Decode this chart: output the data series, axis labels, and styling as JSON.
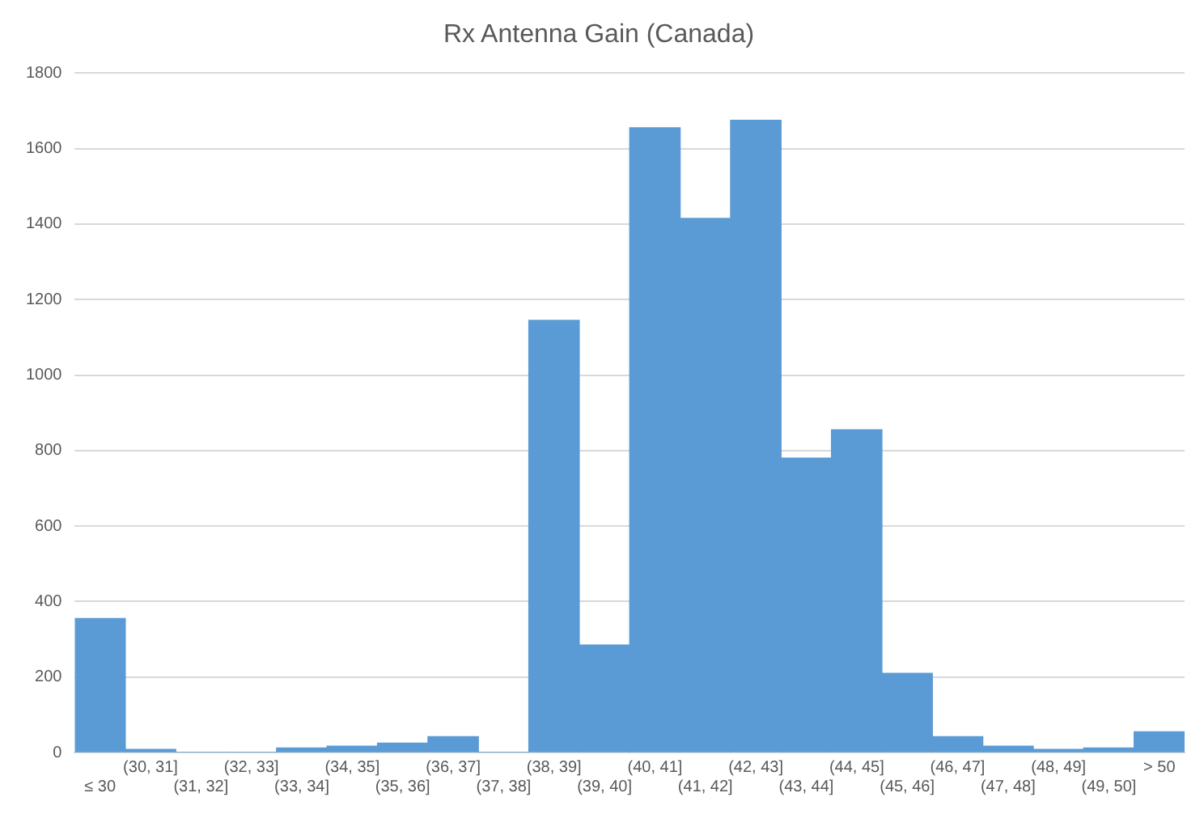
{
  "chart_data": {
    "type": "bar",
    "title": "Rx Antenna Gain (Canada)",
    "categories": [
      "≤ 30",
      "(30, 31]",
      "(31, 32]",
      "(32, 33]",
      "(33, 34]",
      "(34, 35]",
      "(35, 36]",
      "(36, 37]",
      "(37, 38]",
      "(38, 39]",
      "(39, 40]",
      "(40, 41]",
      "(41, 42]",
      "(42, 43]",
      "(43, 44]",
      "(44, 45]",
      "(45, 46]",
      "(46, 47]",
      "(47, 48]",
      "(48, 49]",
      "(49, 50]",
      "> 50"
    ],
    "values": [
      355,
      8,
      0,
      0,
      12,
      17,
      25,
      42,
      0,
      1145,
      285,
      1655,
      1415,
      1675,
      780,
      855,
      210,
      42,
      17,
      8,
      12,
      55
    ],
    "color": "#5b9bd5",
    "ylim": [
      0,
      1800
    ],
    "yticks": [
      0,
      200,
      400,
      600,
      800,
      1000,
      1200,
      1400,
      1600,
      1800
    ],
    "grid": "y",
    "legend": false
  }
}
